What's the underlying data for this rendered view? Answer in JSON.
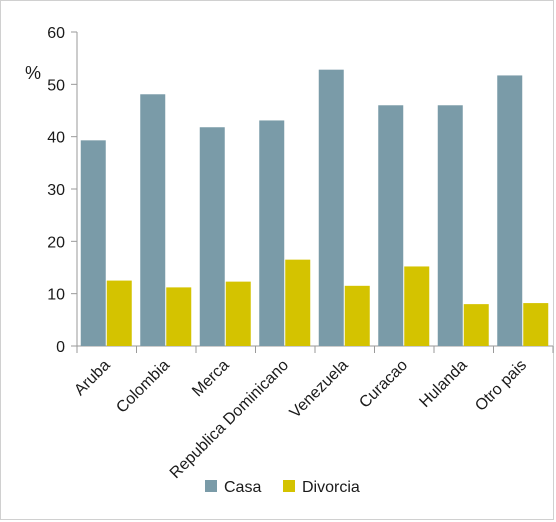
{
  "chart_data": {
    "type": "bar",
    "unit_label": "%",
    "categories": [
      "Aruba",
      "Colombia",
      "Merca",
      "Republica Dominicano",
      "Venezuela",
      "Curacao",
      "Hulanda",
      "Otro pais"
    ],
    "series": [
      {
        "name": "Casa",
        "color": "#7a9ba8",
        "values": [
          39.3,
          48.1,
          41.8,
          43.1,
          52.8,
          46.0,
          46.0,
          51.7
        ]
      },
      {
        "name": "Divorcia",
        "color": "#d4c300",
        "values": [
          12.5,
          11.2,
          12.3,
          16.5,
          11.5,
          15.2,
          8.0,
          8.2
        ]
      }
    ],
    "ylim": [
      0,
      60
    ],
    "yticks": [
      0,
      10,
      20,
      30,
      40,
      50,
      60
    ],
    "grid": false,
    "legend_position": "bottom"
  }
}
